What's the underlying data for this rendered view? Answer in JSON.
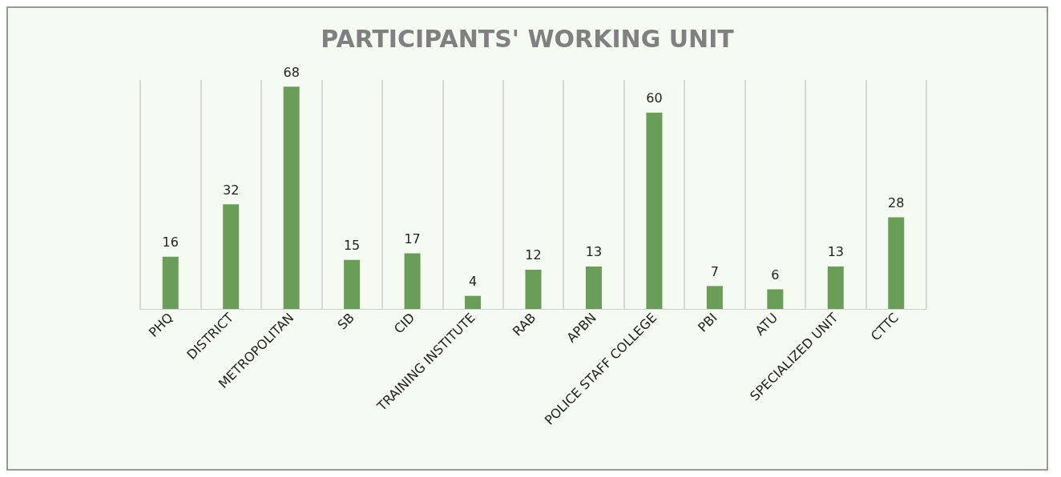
{
  "chart_data": {
    "type": "bar",
    "title": "PARTICIPANTS' WORKING UNIT",
    "categories": [
      "PHQ",
      "DISTRICT",
      "METROPOLITAN",
      "SB",
      "CID",
      "TRAINING INSTITUTE",
      "RAB",
      "APBN",
      "POLICE STAFF COLLEGE",
      "PBI",
      "ATU",
      "SPECIALIZED UNIT",
      "CTTC"
    ],
    "values": [
      16,
      32,
      68,
      15,
      17,
      4,
      12,
      13,
      60,
      7,
      6,
      13,
      28
    ],
    "color": "#6a9e58",
    "data_labels": true,
    "grid": "x",
    "tick_labels": "x"
  }
}
